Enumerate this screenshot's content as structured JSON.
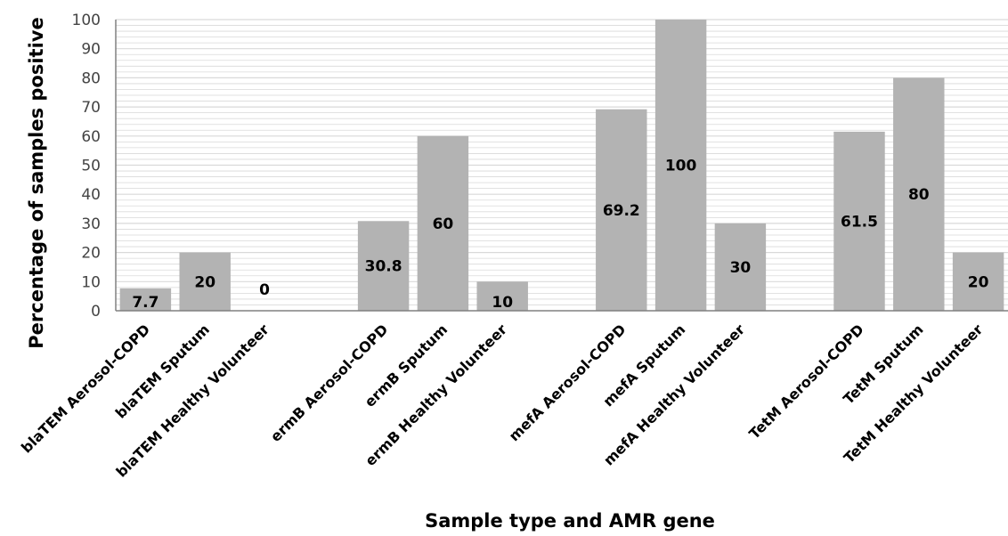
{
  "chart_data": {
    "type": "bar",
    "categories": [
      "blaTEM Aerosol-COPD",
      "blaTEM Sputum",
      "blaTEM Healthy Volunteer",
      "",
      "ermB Aerosol-COPD",
      "ermB Sputum",
      "ermB Healthy Volunteer",
      "",
      "mefA Aerosol-COPD",
      "mefA Sputum",
      "mefA Healthy Volunteer",
      "",
      "TetM Aerosol-COPD",
      "TetM Sputum",
      "TetM Healthy Volunteer"
    ],
    "values": [
      7.7,
      20,
      0,
      null,
      30.8,
      60,
      10,
      null,
      69.2,
      100,
      30,
      null,
      61.5,
      80,
      20
    ],
    "data_labels": [
      "7.7",
      "20",
      "0",
      "",
      "30.8",
      "60",
      "10",
      "",
      "69.2",
      "100",
      "30",
      "",
      "61.5",
      "80",
      "20"
    ],
    "xlabel": "Sample type and AMR gene",
    "ylabel": "Percentage of samples positive",
    "ylim": [
      0,
      100
    ],
    "yticks": [
      0,
      10,
      20,
      30,
      40,
      50,
      60,
      70,
      80,
      90,
      100
    ],
    "grid": true,
    "legend": "none",
    "bar_color": "#b3b3b3",
    "grid_color": "#d9d9d9"
  }
}
